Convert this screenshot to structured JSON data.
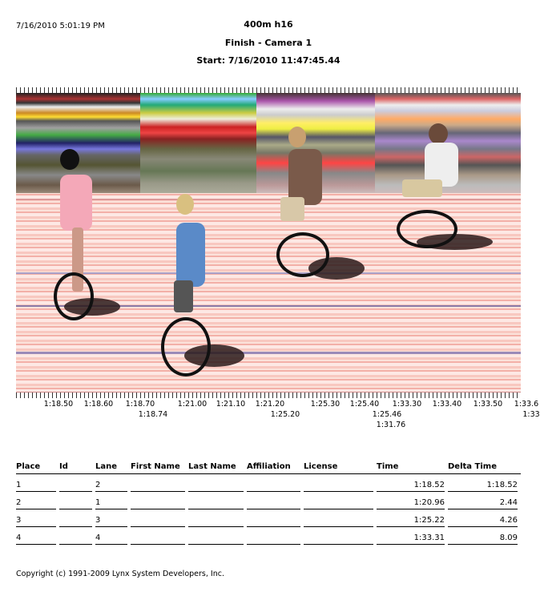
{
  "header": {
    "timestamp": "7/16/2010 5:01:19 PM",
    "title": "400m h16",
    "subtitle": "Finish - Camera 1",
    "start": "Start: 7/16/2010 11:47:45.44"
  },
  "photo": {
    "ruler_labels_row1": [
      "1:18.50",
      "1:18.60",
      "1:18.70",
      "1:21.00",
      "1:21.10",
      "1:21.20",
      "1:25.30",
      "1:25.40",
      "1:33.30",
      "1:33.40",
      "1:33.50",
      "1:33.6"
    ],
    "ruler_labels_row2": [
      "1:18.74",
      "1:25.20",
      "1:25.46",
      "1:33"
    ],
    "ruler_labels_row3": [
      "1:31.76"
    ]
  },
  "results": {
    "columns": [
      "Place",
      "Id",
      "Lane",
      "First Name",
      "Last Name",
      "Affiliation",
      "License",
      "Time",
      "Delta Time"
    ],
    "rows": [
      {
        "place": "1",
        "id": "",
        "lane": "2",
        "first": "",
        "last": "",
        "affiliation": "",
        "license": "",
        "time": "1:18.52",
        "delta": "1:18.52"
      },
      {
        "place": "2",
        "id": "",
        "lane": "1",
        "first": "",
        "last": "",
        "affiliation": "",
        "license": "",
        "time": "1:20.96",
        "delta": "2.44"
      },
      {
        "place": "3",
        "id": "",
        "lane": "3",
        "first": "",
        "last": "",
        "affiliation": "",
        "license": "",
        "time": "1:25.22",
        "delta": "4.26"
      },
      {
        "place": "4",
        "id": "",
        "lane": "4",
        "first": "",
        "last": "",
        "affiliation": "",
        "license": "",
        "time": "1:33.31",
        "delta": "8.09"
      }
    ]
  },
  "footer": {
    "copyright": "Copyright (c) 1991-2009 Lynx System Developers, Inc."
  }
}
